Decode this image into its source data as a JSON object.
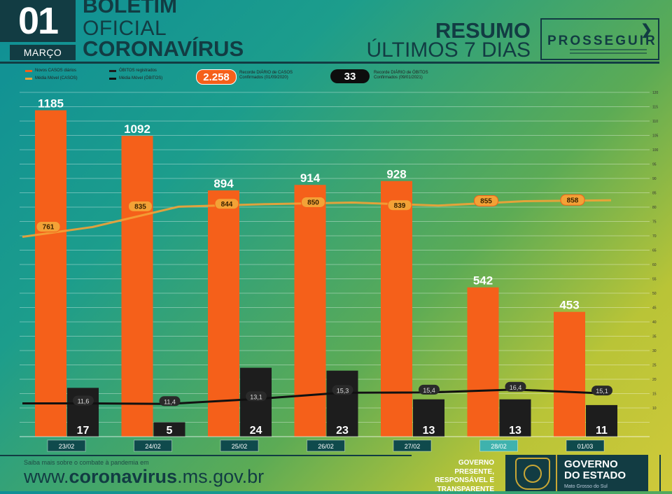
{
  "header": {
    "day": "01",
    "month": "MARÇO",
    "title_line1": "BOLETIM",
    "title_line2": "OFICIAL",
    "title_line3": "CORONAVÍRUS",
    "summary_line1": "RESUMO",
    "summary_line2": "ÚLTIMOS 7 DIAS",
    "brand": "PROSSEGUIR"
  },
  "legend": {
    "new_cases": "Novos CASOS diários",
    "avg_cases": "Média Móvel (CASOS)",
    "deaths": "ÓBITOS registrados",
    "avg_deaths": "Média Móvel (ÓBITOS)"
  },
  "records": {
    "cases_value": "2.258",
    "cases_label_1": "Recorde DIÁRIO de CASOS",
    "cases_label_2": "Confirmados (01/09/2020)",
    "deaths_value": "33",
    "deaths_label_1": "Recorde DIÁRIO de ÓBITOS",
    "deaths_label_2": "Confirmados (09/01/2021)"
  },
  "chart_data": {
    "type": "bar",
    "categories": [
      "23/02",
      "24/02",
      "25/02",
      "26/02",
      "27/02",
      "28/02",
      "01/03"
    ],
    "highlight_category": "28/02",
    "series": [
      {
        "name": "Novos CASOS diários",
        "kind": "bar",
        "axis": "left",
        "color": "#f5601a",
        "values": [
          1185,
          1092,
          894,
          914,
          928,
          542,
          453
        ]
      },
      {
        "name": "Média Móvel (CASOS)",
        "kind": "line",
        "axis": "left",
        "color": "#f3a236",
        "values": [
          761,
          835,
          844,
          850,
          839,
          855,
          858
        ]
      },
      {
        "name": "ÓBITOS registrados",
        "kind": "bar",
        "axis": "right",
        "color": "#1d1d1d",
        "values": [
          17,
          5,
          24,
          23,
          13,
          13,
          11
        ]
      },
      {
        "name": "Média Móvel (ÓBITOS)",
        "kind": "line",
        "axis": "right",
        "color": "#111111",
        "values": [
          11.6,
          11.4,
          13.1,
          15.3,
          15.4,
          16.4,
          15.1
        ]
      }
    ],
    "y_left": {
      "range": [
        0,
        1250
      ]
    },
    "y_right": {
      "range": [
        0,
        120
      ],
      "ticks": [
        10,
        15,
        20,
        25,
        30,
        35,
        40,
        45,
        50,
        55,
        60,
        65,
        70,
        75,
        80,
        85,
        90,
        95,
        100,
        105,
        110,
        115,
        120
      ]
    },
    "grid": true
  },
  "footer": {
    "info_text": "Saiba mais sobre o combate à pandemia em",
    "url_prefix": "www.",
    "url_main": "coronavirus",
    "url_suffix": ".ms.gov.br",
    "tagline": [
      "GOVERNO",
      "PRESENTE,",
      "RESPONSÁVEL E",
      "TRANSPARENTE"
    ],
    "gov_line1": "GOVERNO",
    "gov_line2": "DO ESTADO",
    "gov_state": "Mato Grosso do Sul"
  },
  "colors": {
    "dark": "#123c43",
    "orange": "#f5601a",
    "black": "#1d1d1d",
    "date_badge": "#0f4a4c",
    "date_badge_highlight": "#3fb2ad"
  }
}
